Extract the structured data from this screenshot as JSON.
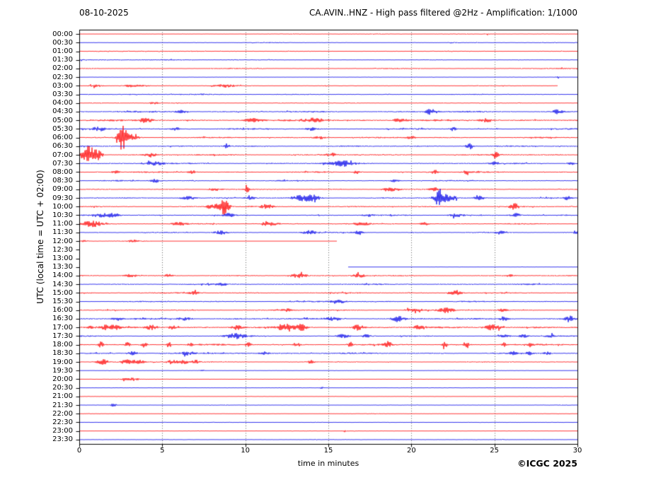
{
  "header": {
    "date": "08-10-2025",
    "title": "CA.AVIN..HNZ - High pass filtered @2Hz - Amplification: 1/1000"
  },
  "footer": {
    "credit": "©ICGC 2025"
  },
  "axes": {
    "ylabel": "UTC (local time = UTC + 02:00)",
    "xlabel": "time in minutes",
    "x_ticks": [
      0,
      5,
      10,
      15,
      20,
      25,
      30
    ],
    "grid_minutes": [
      5,
      10,
      15,
      20,
      25
    ],
    "x_min": 0,
    "x_max": 30
  },
  "colors": {
    "trace_red": "#ff0000",
    "trace_blue": "#0000e8",
    "grid": "#333333",
    "frame": "#000000",
    "background": "#ffffff",
    "text": "#000000"
  },
  "chart_data": {
    "type": "line",
    "variant": "helicorder-day-plot",
    "title": "CA.AVIN..HNZ - High pass filtered @2Hz - Amplification: 1/1000",
    "date": "08-10-2025",
    "xlabel": "time in minutes",
    "ylabel": "UTC (local time = UTC + 02:00)",
    "x_range": [
      0,
      30
    ],
    "trace_interval_minutes": 30,
    "row_colors_alternate": [
      "red",
      "blue"
    ],
    "rows": [
      {
        "time": "00:00",
        "color": "red",
        "base": 0.3,
        "patches": [
          [
            9.5,
            30,
            0.35
          ]
        ],
        "events": [
          [
            24.6,
            1.5,
            0.06
          ]
        ]
      },
      {
        "time": "00:30",
        "color": "blue",
        "base": 0.35,
        "patches": [
          [
            6.9,
            15.3,
            0.5
          ],
          [
            22,
            30,
            0.45
          ]
        ]
      },
      {
        "time": "01:00",
        "color": "red",
        "base": 0.6,
        "patches": [
          [
            1,
            9.5,
            0.4
          ]
        ]
      },
      {
        "time": "01:30",
        "color": "blue",
        "base": 0.6,
        "patches": [
          [
            0,
            9.4,
            0.55
          ]
        ]
      },
      {
        "time": "02:00",
        "color": "red",
        "base": 0.85
      },
      {
        "time": "02:30",
        "color": "blue",
        "base": 0.35,
        "events": [
          [
            28.8,
            2.5,
            0.06
          ]
        ]
      },
      {
        "time": "03:00",
        "color": "red",
        "base": 0.6,
        "segments": [
          [
            0,
            28.8,
            "n"
          ]
        ],
        "events": [
          [
            1,
            1.5,
            0.3
          ],
          [
            3.3,
            2.2,
            0.5
          ],
          [
            8.8,
            2.2,
            0.5
          ]
        ]
      },
      {
        "time": "03:30",
        "color": "blue",
        "base": 0.8,
        "patches": [
          [
            0,
            14,
            0.25
          ]
        ]
      },
      {
        "time": "04:00",
        "color": "red",
        "base": 0.7,
        "events": [
          [
            4.5,
            1.5,
            0.2
          ]
        ]
      },
      {
        "time": "04:30",
        "color": "blue",
        "base": 1.3,
        "events": [
          [
            6.2,
            2.5,
            0.25
          ],
          [
            21.2,
            4,
            0.22
          ],
          [
            28.8,
            2.8,
            0.2
          ]
        ]
      },
      {
        "time": "05:00",
        "color": "red",
        "base": 1.4,
        "events": [
          [
            4,
            3,
            0.3
          ],
          [
            10.5,
            2.5,
            0.3
          ],
          [
            14.2,
            3.2,
            0.5
          ],
          [
            19.3,
            2.5,
            0.3
          ],
          [
            24.5,
            2.5,
            0.3
          ]
        ]
      },
      {
        "time": "05:30",
        "color": "blue",
        "base": 1.2,
        "events": [
          [
            1.2,
            2.5,
            0.3
          ],
          [
            5.8,
            2,
            0.2
          ],
          [
            14,
            2,
            0.2
          ],
          [
            22.5,
            2.5,
            0.15
          ]
        ]
      },
      {
        "time": "06:00",
        "color": "red",
        "base": 1.1,
        "events": [
          [
            2.55,
            20,
            0.16
          ],
          [
            2.95,
            5,
            0.35
          ],
          [
            14.5,
            2,
            0.3
          ],
          [
            20,
            2,
            0.2
          ]
        ]
      },
      {
        "time": "06:30",
        "color": "blue",
        "base": 1.1,
        "events": [
          [
            8.9,
            3.5,
            0.1
          ],
          [
            23.5,
            4.5,
            0.16
          ]
        ]
      },
      {
        "time": "07:00",
        "color": "red",
        "base": 1.2,
        "events": [
          [
            0.55,
            13,
            0.32
          ],
          [
            1.15,
            5,
            0.2
          ],
          [
            4.3,
            3,
            0.2
          ],
          [
            15.2,
            2.5,
            0.2
          ],
          [
            25.1,
            3.5,
            0.14
          ]
        ]
      },
      {
        "time": "07:30",
        "color": "blue",
        "base": 1.1,
        "events": [
          [
            4.5,
            2.5,
            0.4
          ],
          [
            15.5,
            2.8,
            0.5
          ],
          [
            16.2,
            2.4,
            0.3
          ],
          [
            25,
            2,
            0.2
          ],
          [
            29.6,
            2.5,
            0.15
          ]
        ]
      },
      {
        "time": "08:00",
        "color": "red",
        "base": 1.1,
        "events": [
          [
            2.2,
            2.5,
            0.15
          ],
          [
            6.8,
            2.5,
            0.15
          ],
          [
            16.7,
            2.5,
            0.15
          ],
          [
            21.4,
            3,
            0.15
          ],
          [
            23.3,
            2.5,
            0.12
          ]
        ]
      },
      {
        "time": "08:30",
        "color": "blue",
        "base": 1,
        "events": [
          [
            4.6,
            2.5,
            0.2
          ],
          [
            19,
            2,
            0.2
          ]
        ]
      },
      {
        "time": "09:00",
        "color": "red",
        "base": 0.85,
        "events": [
          [
            8.2,
            2,
            0.3
          ],
          [
            10.1,
            4,
            0.1
          ],
          [
            18.8,
            2.5,
            0.4
          ],
          [
            21.4,
            2,
            0.2
          ]
        ]
      },
      {
        "time": "09:30",
        "color": "blue",
        "base": 1,
        "events": [
          [
            6.5,
            2.5,
            0.3
          ],
          [
            10.3,
            2,
            0.2
          ],
          [
            13.5,
            3.8,
            0.5
          ],
          [
            14.1,
            3,
            0.3
          ],
          [
            21.7,
            13,
            0.2
          ],
          [
            22.3,
            4.5,
            0.28
          ],
          [
            24.1,
            3.5,
            0.2
          ],
          [
            29.4,
            3,
            0.15
          ]
        ]
      },
      {
        "time": "10:00",
        "color": "red",
        "base": 1,
        "events": [
          [
            8.1,
            4,
            0.3
          ],
          [
            8.75,
            13,
            0.18
          ],
          [
            11.3,
            3,
            0.25
          ],
          [
            26.2,
            5,
            0.18
          ]
        ]
      },
      {
        "time": "10:30",
        "color": "blue",
        "base": 1,
        "events": [
          [
            1.3,
            2.5,
            0.4
          ],
          [
            2.1,
            2.5,
            0.3
          ],
          [
            9,
            2.5,
            0.2
          ],
          [
            17.4,
            2,
            0.2
          ],
          [
            22.7,
            2.5,
            0.3
          ],
          [
            26.3,
            2.5,
            0.2
          ]
        ]
      },
      {
        "time": "11:00",
        "color": "red",
        "base": 0.95,
        "events": [
          [
            0.75,
            4.5,
            0.45
          ],
          [
            6,
            2,
            0.3
          ],
          [
            11.4,
            2.5,
            0.4
          ],
          [
            17,
            2,
            0.3
          ],
          [
            20.8,
            2,
            0.2
          ]
        ]
      },
      {
        "time": "11:30",
        "color": "blue",
        "base": 0.95,
        "events": [
          [
            8.6,
            3,
            0.3
          ],
          [
            13.9,
            2.5,
            0.3
          ],
          [
            16.8,
            2,
            0.25
          ],
          [
            25.4,
            2.5,
            0.2
          ],
          [
            29.9,
            3,
            0.1
          ]
        ]
      },
      {
        "time": "12:00",
        "color": "red",
        "base": 0.8,
        "segments": [
          [
            0,
            4.3,
            "n"
          ],
          [
            4.3,
            15.5,
            "f"
          ]
        ],
        "events": [
          [
            0.3,
            1.5,
            0.2
          ],
          [
            3.3,
            1.5,
            0.2
          ]
        ]
      },
      {
        "time": "12:30",
        "color": "blue",
        "base": 0,
        "segments": []
      },
      {
        "time": "13:00",
        "color": "red",
        "base": 0,
        "segments": []
      },
      {
        "time": "13:30",
        "color": "blue",
        "base": 0.3,
        "segments": [
          [
            16.2,
            21,
            "f"
          ],
          [
            21,
            30,
            "n"
          ]
        ]
      },
      {
        "time": "14:00",
        "color": "red",
        "base": 0.95,
        "events": [
          [
            3.1,
            2,
            0.3
          ],
          [
            5.4,
            2,
            0.2
          ],
          [
            13.2,
            3,
            0.35
          ],
          [
            16.8,
            3,
            0.25
          ],
          [
            25.9,
            2,
            0.2
          ]
        ]
      },
      {
        "time": "14:30",
        "color": "blue",
        "base": 1.15,
        "events": [
          [
            8.6,
            2,
            0.2
          ]
        ]
      },
      {
        "time": "15:00",
        "color": "red",
        "base": 1.05,
        "events": [
          [
            6.9,
            1.8,
            0.2
          ],
          [
            22.7,
            3,
            0.3
          ]
        ]
      },
      {
        "time": "15:30",
        "color": "blue",
        "base": 1.05,
        "events": [
          [
            15.6,
            2.5,
            0.3
          ]
        ]
      },
      {
        "time": "16:00",
        "color": "red",
        "base": 1,
        "events": [
          [
            12.5,
            2,
            0.2
          ],
          [
            20.2,
            2.5,
            0.4
          ],
          [
            22.1,
            3.5,
            0.3
          ],
          [
            25.5,
            2,
            0.15
          ]
        ]
      },
      {
        "time": "16:30",
        "color": "blue",
        "base": 1.3,
        "events": [
          [
            2.3,
            2.5,
            0.2
          ],
          [
            6.4,
            2.5,
            0.3
          ],
          [
            15.3,
            2.5,
            0.3
          ],
          [
            19.2,
            3.5,
            0.25
          ],
          [
            25.6,
            2.5,
            0.2
          ],
          [
            29.5,
            4,
            0.18
          ]
        ]
      },
      {
        "time": "17:00",
        "color": "red",
        "base": 1.4,
        "events": [
          [
            0.6,
            2.5,
            0.15
          ],
          [
            1.6,
            3,
            0.2
          ],
          [
            2.1,
            3,
            0.2
          ],
          [
            4.3,
            3.5,
            0.25
          ],
          [
            5.6,
            3,
            0.2
          ],
          [
            9.5,
            3,
            0.2
          ],
          [
            12.35,
            5,
            0.28
          ],
          [
            13.35,
            5,
            0.25
          ],
          [
            16.8,
            4,
            0.2
          ],
          [
            20.5,
            3.5,
            0.2
          ],
          [
            24.9,
            4,
            0.35
          ]
        ]
      },
      {
        "time": "17:30",
        "color": "blue",
        "base": 0.95,
        "events": [
          [
            9.4,
            3.5,
            0.4
          ],
          [
            15.9,
            2.5,
            0.25
          ],
          [
            17.3,
            2.5,
            0.2
          ],
          [
            25.6,
            2.5,
            0.2
          ],
          [
            26.8,
            2.5,
            0.2
          ],
          [
            28.3,
            2.5,
            0.2
          ]
        ]
      },
      {
        "time": "18:00",
        "color": "red",
        "base": 1.2,
        "events": [
          [
            1.3,
            4,
            0.12
          ],
          [
            2.9,
            3,
            0.1
          ],
          [
            3.9,
            3.5,
            0.12
          ],
          [
            5.4,
            4,
            0.1
          ],
          [
            6.7,
            3,
            0.1
          ],
          [
            10.2,
            3.5,
            0.12
          ],
          [
            13.1,
            3.5,
            0.12
          ],
          [
            16.3,
            4,
            0.12
          ],
          [
            18.6,
            4,
            0.15
          ],
          [
            22,
            4.5,
            0.12
          ],
          [
            23.3,
            3.5,
            0.12
          ],
          [
            25.6,
            3.5,
            0.1
          ],
          [
            27.2,
            3,
            0.1
          ]
        ]
      },
      {
        "time": "18:30",
        "color": "blue",
        "base": 1.1,
        "patches": [
          [
            0,
            18,
            0.25
          ]
        ],
        "events": [
          [
            3.2,
            2.5,
            0.2
          ],
          [
            6.5,
            2,
            0.2
          ],
          [
            11.2,
            2,
            0.2
          ],
          [
            26.1,
            2,
            0.15
          ],
          [
            27.1,
            2,
            0.15
          ],
          [
            28.2,
            2,
            0.15
          ]
        ]
      },
      {
        "time": "19:00",
        "color": "red",
        "base": 0.8,
        "patches": [
          [
            0,
            8,
            0.3
          ]
        ],
        "events": [
          [
            1.4,
            3.5,
            0.25
          ],
          [
            2.9,
            3,
            0.3
          ],
          [
            3.6,
            3,
            0.2
          ],
          [
            5.6,
            3,
            0.2
          ],
          [
            6.3,
            2.5,
            0.2
          ],
          [
            7,
            2.5,
            0.15
          ],
          [
            13.9,
            2,
            0.15
          ]
        ]
      },
      {
        "time": "19:30",
        "color": "blue",
        "base": 0.4,
        "events": [
          [
            7.4,
            2,
            0.08
          ]
        ]
      },
      {
        "time": "20:00",
        "color": "red",
        "base": 0.45,
        "events": [
          [
            2.8,
            1.5,
            0.3
          ],
          [
            3.3,
            1.8,
            0.2
          ]
        ]
      },
      {
        "time": "20:30",
        "color": "blue",
        "base": 0.4,
        "events": [
          [
            14.6,
            1.5,
            0.08
          ]
        ]
      },
      {
        "time": "21:00",
        "color": "red",
        "base": 0.4
      },
      {
        "time": "21:30",
        "color": "blue",
        "base": 0.45,
        "events": [
          [
            2.1,
            2.2,
            0.15
          ]
        ]
      },
      {
        "time": "22:00",
        "color": "red",
        "base": 0.45,
        "patches": [
          [
            16.8,
            18.1,
            0.3
          ]
        ]
      },
      {
        "time": "22:30",
        "color": "blue",
        "base": 0.45
      },
      {
        "time": "23:00",
        "color": "red",
        "base": 0.4,
        "events": [
          [
            16,
            1.8,
            0.07
          ]
        ]
      },
      {
        "time": "23:30",
        "color": "blue",
        "base": 0.45
      }
    ]
  }
}
